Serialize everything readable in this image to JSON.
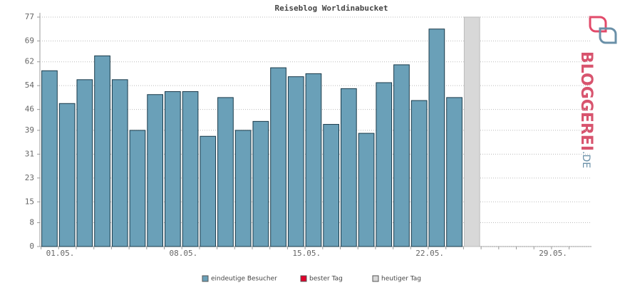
{
  "chart_data": {
    "type": "bar",
    "title": "Reiseblog Worldinabucket",
    "categories": [
      "01.05.",
      null,
      null,
      null,
      null,
      null,
      null,
      "08.05.",
      null,
      null,
      null,
      null,
      null,
      null,
      "15.05.",
      null,
      null,
      null,
      null,
      null,
      null,
      "22.05.",
      null,
      null,
      null,
      null,
      null,
      null,
      "29.05.",
      null,
      null
    ],
    "series": [
      {
        "name": "eindeutige Besucher",
        "color": "#6aa0b8",
        "values": [
          59,
          48,
          56,
          64,
          56,
          39,
          51,
          52,
          52,
          37,
          50,
          39,
          42,
          60,
          57,
          58,
          41,
          53,
          38,
          55,
          61,
          49,
          73,
          50,
          null,
          null,
          null,
          null,
          null,
          null,
          null
        ]
      },
      {
        "name": "bester Tag",
        "color": "#e0002a",
        "values": [
          null,
          null,
          null,
          null,
          null,
          null,
          null,
          null,
          null,
          null,
          null,
          null,
          null,
          null,
          null,
          null,
          null,
          null,
          null,
          null,
          null,
          null,
          null,
          null,
          null,
          null,
          null,
          null,
          null,
          null,
          null
        ]
      },
      {
        "name": "heutiger Tag",
        "color": "#d8d8d8",
        "values": [
          null,
          null,
          null,
          null,
          null,
          null,
          null,
          null,
          null,
          null,
          null,
          null,
          null,
          null,
          null,
          null,
          null,
          null,
          null,
          null,
          null,
          null,
          null,
          null,
          77,
          null,
          null,
          null,
          null,
          null,
          null
        ]
      }
    ],
    "ylim": [
      0,
      77
    ],
    "yticks": [
      0,
      8,
      15,
      23,
      31,
      39,
      46,
      54,
      62,
      69,
      77
    ],
    "grid": true
  },
  "logo": {
    "text": "BLOGGEREI",
    "suffix": ".DE"
  }
}
